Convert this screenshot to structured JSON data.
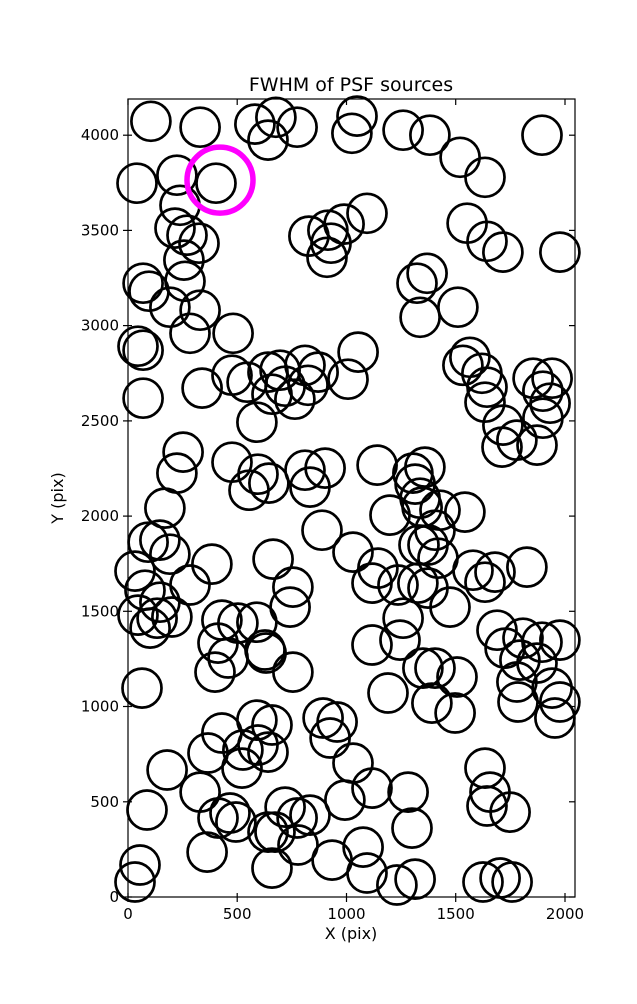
{
  "figure": {
    "background": "#ffffff"
  },
  "chart_data": {
    "type": "scatter",
    "title": "FWHM of PSF sources",
    "xlabel": "X (pix)",
    "ylabel": "Y (pix)",
    "xlim": [
      0,
      2046
    ],
    "ylim": [
      0,
      4190
    ],
    "xticks": [
      0,
      500,
      1000,
      1500,
      2000
    ],
    "yticks": [
      0,
      500,
      1000,
      1500,
      2000,
      2500,
      3000,
      3500,
      4000
    ],
    "grid": false,
    "legend": null,
    "axis_color": "#000000",
    "series": [
      {
        "name": "psf-sources",
        "marker": "open-circle",
        "color": "#000000",
        "marker_radius_px": 19.5,
        "stroke_width_px": 2.7,
        "points": [
          [
            105,
            4073
          ],
          [
            330,
            4042
          ],
          [
            224,
            3790
          ],
          [
            41,
            3748
          ],
          [
            403,
            3748
          ],
          [
            238,
            3632
          ],
          [
            215,
            3512
          ],
          [
            270,
            3475
          ],
          [
            325,
            3433
          ],
          [
            581,
            4058
          ],
          [
            677,
            4094
          ],
          [
            774,
            4042
          ],
          [
            641,
            3974
          ],
          [
            1048,
            4100
          ],
          [
            1025,
            4010
          ],
          [
            1259,
            4026
          ],
          [
            828,
            3470
          ],
          [
            915,
            3501
          ],
          [
            989,
            3533
          ],
          [
            1094,
            3590
          ],
          [
            929,
            3433
          ],
          [
            1382,
            4000
          ],
          [
            1520,
            3884
          ],
          [
            1634,
            3779
          ],
          [
            1895,
            4000
          ],
          [
            1552,
            3538
          ],
          [
            1643,
            3443
          ],
          [
            1716,
            3386
          ],
          [
            1977,
            3386
          ],
          [
            69,
            3223
          ],
          [
            96,
            3181
          ],
          [
            256,
            3344
          ],
          [
            261,
            3233
          ],
          [
            192,
            3097
          ],
          [
            330,
            3081
          ],
          [
            284,
            2960
          ],
          [
            481,
            2960
          ],
          [
            46,
            2892
          ],
          [
            69,
            2871
          ],
          [
            476,
            2740
          ],
          [
            545,
            2703
          ],
          [
            641,
            2756
          ],
          [
            339,
            2672
          ],
          [
            69,
            2619
          ],
          [
            659,
            2640
          ],
          [
            911,
            3359
          ],
          [
            1323,
            3223
          ],
          [
            1337,
            3044
          ],
          [
            1053,
            2861
          ],
          [
            696,
            2766
          ],
          [
            810,
            2792
          ],
          [
            870,
            2756
          ],
          [
            719,
            2682
          ],
          [
            824,
            2687
          ],
          [
            1007,
            2719
          ],
          [
            764,
            2614
          ],
          [
            1369,
            3275
          ],
          [
            1510,
            3097
          ],
          [
            1533,
            2792
          ],
          [
            1565,
            2834
          ],
          [
            1620,
            2750
          ],
          [
            1643,
            2677
          ],
          [
            1634,
            2598
          ],
          [
            1854,
            2724
          ],
          [
            1941,
            2724
          ],
          [
            1899,
            2656
          ],
          [
            1932,
            2593
          ],
          [
            252,
            2336
          ],
          [
            224,
            2226
          ],
          [
            169,
            2042
          ],
          [
            146,
            1874
          ],
          [
            92,
            1863
          ],
          [
            192,
            1800
          ],
          [
            476,
            2283
          ],
          [
            595,
            2220
          ],
          [
            554,
            2136
          ],
          [
            384,
            1748
          ],
          [
            664,
            1774
          ],
          [
            32,
            1711
          ],
          [
            590,
            2493
          ],
          [
            645,
            2173
          ],
          [
            810,
            2241
          ],
          [
            902,
            2252
          ],
          [
            833,
            2152
          ],
          [
            1140,
            2268
          ],
          [
            1304,
            2226
          ],
          [
            1314,
            2168
          ],
          [
            1199,
            2005
          ],
          [
            888,
            1926
          ],
          [
            1030,
            1811
          ],
          [
            1144,
            1727
          ],
          [
            1332,
            1848
          ],
          [
            1346,
            2047
          ],
          [
            1716,
            2478
          ],
          [
            1780,
            2399
          ],
          [
            1712,
            2362
          ],
          [
            1872,
            2373
          ],
          [
            1899,
            2514
          ],
          [
            1359,
            2257
          ],
          [
            1337,
            2094
          ],
          [
            1428,
            2031
          ],
          [
            1542,
            2021
          ],
          [
            1405,
            1926
          ],
          [
            1373,
            1848
          ],
          [
            1419,
            1779
          ],
          [
            1579,
            1716
          ],
          [
            1680,
            1706
          ],
          [
            1826,
            1732
          ],
          [
            78,
            1611
          ],
          [
            146,
            1548
          ],
          [
            46,
            1480
          ],
          [
            133,
            1464
          ],
          [
            201,
            1470
          ],
          [
            101,
            1412
          ],
          [
            284,
            1638
          ],
          [
            430,
            1454
          ],
          [
            503,
            1438
          ],
          [
            590,
            1443
          ],
          [
            412,
            1333
          ],
          [
            458,
            1255
          ],
          [
            398,
            1181
          ],
          [
            632,
            1281
          ],
          [
            64,
            1097
          ],
          [
            590,
            929
          ],
          [
            430,
            861
          ],
          [
            755,
            1627
          ],
          [
            742,
            1522
          ],
          [
            1117,
            1648
          ],
          [
            1236,
            1638
          ],
          [
            1327,
            1648
          ],
          [
            1259,
            1464
          ],
          [
            1117,
            1323
          ],
          [
            1245,
            1349
          ],
          [
            1350,
            1202
          ],
          [
            627,
            1297
          ],
          [
            755,
            1181
          ],
          [
            1190,
            1071
          ],
          [
            893,
            940
          ],
          [
            957,
            919
          ],
          [
            659,
            903
          ],
          [
            1373,
            1622
          ],
          [
            1474,
            1522
          ],
          [
            1634,
            1653
          ],
          [
            1689,
            1401
          ],
          [
            1726,
            1307
          ],
          [
            1808,
            1359
          ],
          [
            1895,
            1338
          ],
          [
            1977,
            1349
          ],
          [
            1794,
            1244
          ],
          [
            1872,
            1228
          ],
          [
            1780,
            1129
          ],
          [
            1941,
            1097
          ],
          [
            1785,
            1024
          ],
          [
            1977,
            1024
          ],
          [
            1954,
            940
          ],
          [
            1405,
            1202
          ],
          [
            1506,
            1155
          ],
          [
            1391,
            1018
          ],
          [
            1497,
            966
          ],
          [
            366,
            756
          ],
          [
            526,
            772
          ],
          [
            595,
            798
          ],
          [
            641,
            761
          ],
          [
            522,
            677
          ],
          [
            179,
            667
          ],
          [
            87,
            457
          ],
          [
            330,
            551
          ],
          [
            412,
            415
          ],
          [
            467,
            441
          ],
          [
            494,
            394
          ],
          [
            362,
            236
          ],
          [
            55,
            168
          ],
          [
            32,
            79
          ],
          [
            641,
            341
          ],
          [
            659,
            152
          ],
          [
            925,
            835
          ],
          [
            1030,
            703
          ],
          [
            1117,
            572
          ],
          [
            993,
            509
          ],
          [
            719,
            472
          ],
          [
            774,
            415
          ],
          [
            833,
            430
          ],
          [
            673,
            341
          ],
          [
            778,
            273
          ],
          [
            934,
            194
          ],
          [
            1076,
            262
          ],
          [
            1094,
            126
          ],
          [
            1282,
            551
          ],
          [
            1300,
            362
          ],
          [
            1231,
            63
          ],
          [
            1314,
            94
          ],
          [
            1634,
            677
          ],
          [
            1657,
            551
          ],
          [
            1643,
            478
          ],
          [
            1749,
            446
          ],
          [
            1625,
            79
          ],
          [
            1703,
            100
          ],
          [
            1758,
            79
          ]
        ]
      },
      {
        "name": "highlighted-source",
        "marker": "open-circle",
        "color": "#ff00ff",
        "marker_radius_px": 33,
        "stroke_width_px": 5.5,
        "points": [
          [
            421,
            3764
          ]
        ]
      }
    ]
  }
}
